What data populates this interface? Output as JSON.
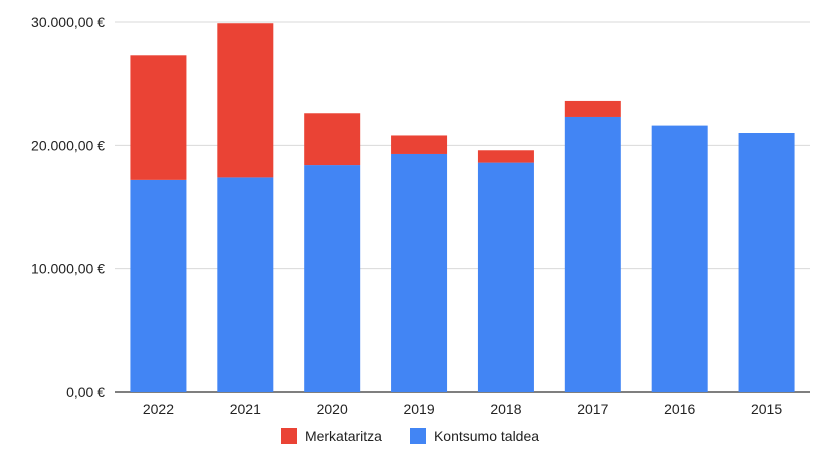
{
  "chart_data": {
    "type": "bar",
    "stacked": true,
    "categories": [
      "2022",
      "2021",
      "2020",
      "2019",
      "2018",
      "2017",
      "2016",
      "2015"
    ],
    "series": [
      {
        "name": "Kontsumo taldea",
        "color": "#4285f4",
        "values": [
          17200,
          17400,
          18400,
          19300,
          18600,
          22300,
          21600,
          21000
        ]
      },
      {
        "name": "Merkataritza",
        "color": "#ea4335",
        "values": [
          10100,
          12500,
          4200,
          1500,
          1000,
          1300,
          0,
          0
        ]
      }
    ],
    "y_ticks": [
      0,
      10000,
      20000,
      30000
    ],
    "y_tick_labels": [
      "0,00 €",
      "10.000,00 €",
      "20.000,00 €",
      "30.000,00 €"
    ],
    "ylim": [
      0,
      30000
    ],
    "grid": true,
    "legend_position": "bottom"
  },
  "legend": [
    {
      "label": "Merkataritza",
      "color": "#ea4335"
    },
    {
      "label": "Kontsumo taldea",
      "color": "#4285f4"
    }
  ]
}
